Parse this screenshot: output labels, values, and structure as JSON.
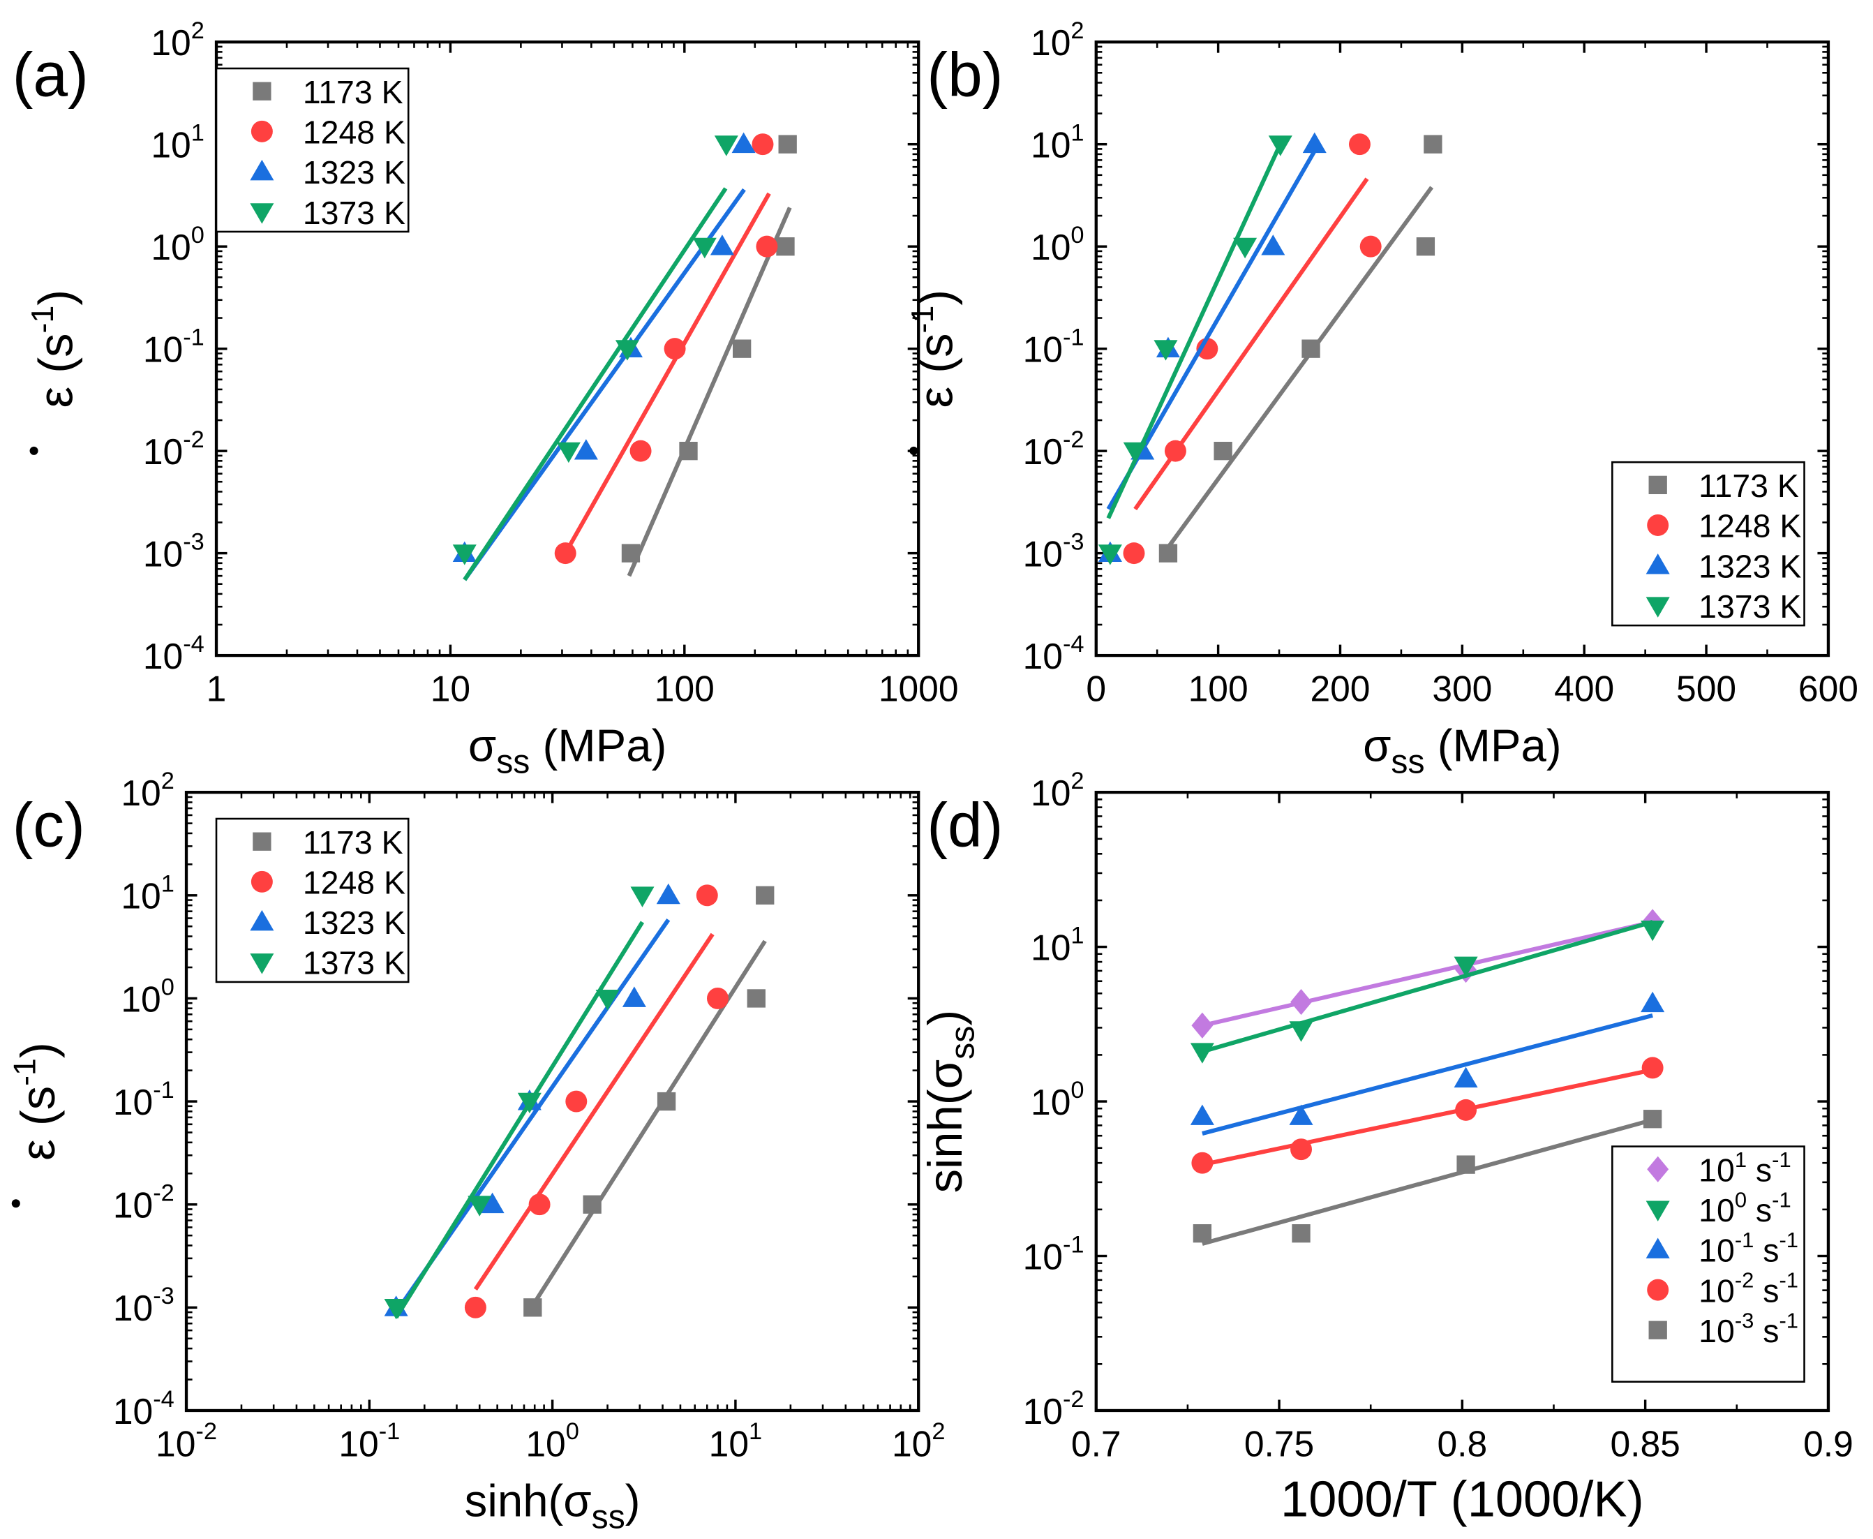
{
  "colors": {
    "c1173": "#7a7a7a",
    "c1248": "#ff4040",
    "c1323": "#1a6fdf",
    "c1373": "#0fa566",
    "purple": "#c27ae0",
    "gray": "#7a7a7a",
    "red": "#ff4040",
    "blue": "#1a6fdf",
    "green": "#0fa566"
  },
  "chart_data": [
    {
      "panel": "(a)",
      "type": "scatter",
      "xscale": "log",
      "yscale": "log",
      "xlim": [
        1,
        1000
      ],
      "ylim": [
        0.0001,
        100
      ],
      "xticks": [
        {
          "b": "1"
        },
        {
          "b": "10"
        },
        {
          "b": "100"
        },
        {
          "b": "1000"
        }
      ],
      "yticks": [
        {
          "b": "10",
          "e": "-4"
        },
        {
          "b": "10",
          "e": "-3"
        },
        {
          "b": "10",
          "e": "-2"
        },
        {
          "b": "10",
          "e": "-1"
        },
        {
          "b": "10",
          "e": "0"
        },
        {
          "b": "10",
          "e": "1"
        },
        {
          "b": "10",
          "e": "2"
        }
      ],
      "xlabel": {
        "main": "σ",
        "sub": "ss",
        "rest": " (MPa)"
      },
      "ylabel": {
        "main": "ε",
        "pre": "",
        "unit": " (s",
        "exp": "-1",
        "close": ")"
      },
      "legend": "top-left",
      "series": [
        {
          "name": "1173 K",
          "marker": "square",
          "color": "c1173",
          "x": [
            59,
            104,
            176,
            270,
            276
          ],
          "y": [
            0.001,
            0.01,
            0.1,
            1,
            10
          ],
          "fit": [
            [
              58,
              0.0006
            ],
            [
              282,
              2.4
            ]
          ]
        },
        {
          "name": "1248 K",
          "marker": "circle",
          "color": "c1248",
          "x": [
            31,
            65,
            91,
            225,
            216
          ],
          "y": [
            0.001,
            0.01,
            0.1,
            1,
            10
          ],
          "fit": [
            [
              31,
              0.001
            ],
            [
              230,
              3.3
            ]
          ]
        },
        {
          "name": "1323 K",
          "marker": "triangle-up",
          "color": "c1323",
          "x": [
            11.5,
            38,
            59,
            145,
            179
          ],
          "y": [
            0.001,
            0.01,
            0.1,
            1,
            10
          ],
          "fit": [
            [
              11.5,
              0.00055
            ],
            [
              180,
              3.6
            ]
          ]
        },
        {
          "name": "1373 K",
          "marker": "triangle-down",
          "color": "c1373",
          "x": [
            11.5,
            32,
            57,
            122,
            151
          ],
          "y": [
            0.001,
            0.01,
            0.1,
            1,
            10
          ],
          "fit": [
            [
              11.5,
              0.00055
            ],
            [
              150,
              3.7
            ]
          ]
        }
      ]
    },
    {
      "panel": "(b)",
      "type": "scatter",
      "xscale": "linear",
      "yscale": "log",
      "xlim": [
        0,
        600
      ],
      "ylim": [
        0.0001,
        100
      ],
      "xticks": [
        {
          "b": "0",
          "v": 0
        },
        {
          "b": "100",
          "v": 100
        },
        {
          "b": "200",
          "v": 200
        },
        {
          "b": "300",
          "v": 300
        },
        {
          "b": "400",
          "v": 400
        },
        {
          "b": "500",
          "v": 500
        },
        {
          "b": "600",
          "v": 600
        }
      ],
      "yticks": [
        {
          "b": "10",
          "e": "-4"
        },
        {
          "b": "10",
          "e": "-3"
        },
        {
          "b": "10",
          "e": "-2"
        },
        {
          "b": "10",
          "e": "-1"
        },
        {
          "b": "10",
          "e": "0"
        },
        {
          "b": "10",
          "e": "1"
        },
        {
          "b": "10",
          "e": "2"
        }
      ],
      "xlabel": {
        "main": "σ",
        "sub": "ss",
        "rest": " (MPa)"
      },
      "ylabel": {
        "main": "ε",
        "pre": "",
        "unit": " (s",
        "exp": "-1",
        "close": ")"
      },
      "legend": "bottom-right",
      "series": [
        {
          "name": "1173 K",
          "marker": "square",
          "color": "c1173",
          "x": [
            59,
            104,
            176,
            270,
            276
          ],
          "y": [
            0.001,
            0.01,
            0.1,
            1,
            10
          ],
          "fit": [
            [
              58,
              0.0011
            ],
            [
              275,
              3.8
            ]
          ]
        },
        {
          "name": "1248 K",
          "marker": "circle",
          "color": "c1248",
          "x": [
            31,
            65,
            91,
            225,
            216
          ],
          "y": [
            0.001,
            0.01,
            0.1,
            1,
            10
          ],
          "fit": [
            [
              32,
              0.0027
            ],
            [
              222,
              4.6
            ]
          ]
        },
        {
          "name": "1323 K",
          "marker": "triangle-up",
          "color": "c1323",
          "x": [
            11.5,
            38,
            59,
            145,
            179
          ],
          "y": [
            0.001,
            0.01,
            0.1,
            1,
            10
          ],
          "fit": [
            [
              10,
              0.0027
            ],
            [
              180,
              9
            ]
          ]
        },
        {
          "name": "1373 K",
          "marker": "triangle-down",
          "color": "c1373",
          "x": [
            11.5,
            32,
            57,
            122,
            151
          ],
          "y": [
            0.001,
            0.01,
            0.1,
            1,
            10
          ],
          "fit": [
            [
              10,
              0.0022
            ],
            [
              150,
              9.5
            ]
          ]
        }
      ]
    },
    {
      "panel": "(c)",
      "type": "scatter",
      "xscale": "log",
      "yscale": "log",
      "xlim": [
        0.01,
        100
      ],
      "ylim": [
        0.0001,
        100
      ],
      "xticks": [
        {
          "b": "10",
          "e": "-2"
        },
        {
          "b": "10",
          "e": "-1"
        },
        {
          "b": "10",
          "e": "0"
        },
        {
          "b": "10",
          "e": "1"
        },
        {
          "b": "10",
          "e": "2"
        }
      ],
      "yticks": [
        {
          "b": "10",
          "e": "-4"
        },
        {
          "b": "10",
          "e": "-3"
        },
        {
          "b": "10",
          "e": "-2"
        },
        {
          "b": "10",
          "e": "-1"
        },
        {
          "b": "10",
          "e": "0"
        },
        {
          "b": "10",
          "e": "1"
        },
        {
          "b": "10",
          "e": "2"
        }
      ],
      "xlabel": {
        "main": "sinh(σ",
        "sub": "ss",
        "rest": ")"
      },
      "ylabel": {
        "main": "ε",
        "pre": "",
        "unit": " (s",
        "exp": "-1",
        "close": ")"
      },
      "legend": "top-left",
      "series": [
        {
          "name": "1173 K",
          "marker": "square",
          "color": "c1173",
          "x": [
            0.78,
            1.65,
            4.2,
            13,
            14.5
          ],
          "y": [
            0.001,
            0.01,
            0.1,
            1,
            10
          ],
          "fit": [
            [
              0.82,
              0.0012
            ],
            [
              14.5,
              3.6
            ]
          ]
        },
        {
          "name": "1248 K",
          "marker": "circle",
          "color": "c1248",
          "x": [
            0.38,
            0.85,
            1.35,
            8,
            7
          ],
          "y": [
            0.001,
            0.01,
            0.1,
            1,
            10
          ],
          "fit": [
            [
              0.38,
              0.0015
            ],
            [
              7.5,
              4.2
            ]
          ]
        },
        {
          "name": "1323 K",
          "marker": "triangle-up",
          "color": "c1323",
          "x": [
            0.14,
            0.47,
            0.75,
            2.8,
            4.3
          ],
          "y": [
            0.001,
            0.01,
            0.1,
            1,
            10
          ],
          "fit": [
            [
              0.14,
              0.0009
            ],
            [
              4.3,
              5.8
            ]
          ]
        },
        {
          "name": "1373 K",
          "marker": "triangle-down",
          "color": "c1373",
          "x": [
            0.14,
            0.4,
            0.75,
            2.0,
            3.1
          ],
          "y": [
            0.001,
            0.01,
            0.1,
            1,
            10
          ],
          "fit": [
            [
              0.14,
              0.0008
            ],
            [
              3.1,
              5.5
            ]
          ]
        }
      ]
    },
    {
      "panel": "(d)",
      "type": "scatter",
      "xscale": "linear",
      "yscale": "log",
      "xlim": [
        0.7,
        0.9
      ],
      "ylim": [
        0.01,
        100
      ],
      "xticks": [
        {
          "b": "0.7",
          "v": 0.7
        },
        {
          "b": "0.75",
          "v": 0.75
        },
        {
          "b": "0.8",
          "v": 0.8
        },
        {
          "b": "0.85",
          "v": 0.85
        },
        {
          "b": "0.9",
          "v": 0.9
        }
      ],
      "yticks": [
        {
          "b": "10",
          "e": "-2"
        },
        {
          "b": "10",
          "e": "-1"
        },
        {
          "b": "10",
          "e": "0"
        },
        {
          "b": "10",
          "e": "1"
        },
        {
          "b": "10",
          "e": "2"
        }
      ],
      "xlabel": {
        "main": "1000/T (1000/K)",
        "sub": "",
        "rest": ""
      },
      "ylabel": {
        "main": "sinh(σ",
        "sub": "ss",
        "rest": ")"
      },
      "legend": "bottom-right",
      "series": [
        {
          "name": "10",
          "exp": "1",
          "unit": " s",
          "uexp": "-1",
          "marker": "diamond",
          "color": "purple",
          "x": [
            0.729,
            0.756,
            0.801,
            0.852
          ],
          "y": [
            3.1,
            4.4,
            7.1,
            14.5
          ],
          "fit": [
            [
              0.729,
              3.1
            ],
            [
              0.852,
              14.5
            ]
          ]
        },
        {
          "name": "10",
          "exp": "0",
          "unit": " s",
          "uexp": "-1",
          "marker": "triangle-down",
          "color": "green",
          "x": [
            0.729,
            0.756,
            0.801,
            0.852
          ],
          "y": [
            2.1,
            2.9,
            7.6,
            13
          ],
          "fit": [
            [
              0.729,
              2.1
            ],
            [
              0.852,
              14.5
            ]
          ]
        },
        {
          "name": "10",
          "exp": "-1",
          "unit": " s",
          "uexp": "-1",
          "marker": "triangle-up",
          "color": "blue",
          "x": [
            0.729,
            0.756,
            0.801,
            0.852
          ],
          "y": [
            0.8,
            0.8,
            1.4,
            4.3
          ],
          "fit": [
            [
              0.729,
              0.62
            ],
            [
              0.852,
              3.6
            ]
          ]
        },
        {
          "name": "10",
          "exp": "-2",
          "unit": " s",
          "uexp": "-1",
          "marker": "circle",
          "color": "red",
          "x": [
            0.729,
            0.756,
            0.801,
            0.852
          ],
          "y": [
            0.4,
            0.49,
            0.88,
            1.65
          ],
          "fit": [
            [
              0.729,
              0.39
            ],
            [
              0.852,
              1.6
            ]
          ]
        },
        {
          "name": "10",
          "exp": "-3",
          "unit": " s",
          "uexp": "-1",
          "marker": "square",
          "color": "gray",
          "x": [
            0.729,
            0.756,
            0.801,
            0.852
          ],
          "y": [
            0.14,
            0.14,
            0.39,
            0.77
          ],
          "fit": [
            [
              0.729,
              0.12
            ],
            [
              0.852,
              0.76
            ]
          ]
        }
      ]
    }
  ]
}
